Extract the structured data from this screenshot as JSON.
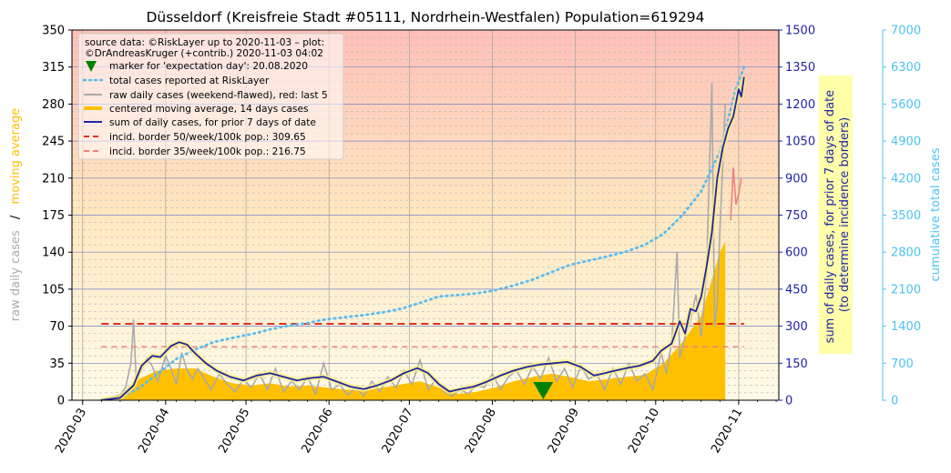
{
  "chart_data": {
    "type": "line",
    "title": "Düsseldorf (Kreisfreie Stadt #05111, Nordrhein-Westfalen) Population=619294",
    "ylabel_left_parts": [
      "raw daily cases",
      "/",
      "moving average"
    ],
    "ylabel_right": [
      "sum of daily cases, for prior 7 days of date",
      "(to determine incidence borders)"
    ],
    "ylabel_far_right": "cumulative total cases",
    "x_tick_labels": [
      "2020-03",
      "2020-04",
      "2020-05",
      "2020-06",
      "2020-07",
      "2020-08",
      "2020-09",
      "2020-10",
      "2020-11"
    ],
    "x_tick_dates": [
      "2020-03-01",
      "2020-04-01",
      "2020-05-01",
      "2020-06-01",
      "2020-07-01",
      "2020-08-01",
      "2020-09-01",
      "2020-10-01",
      "2020-11-01"
    ],
    "xlim": [
      "2020-02-26",
      "2020-11-16"
    ],
    "ylim_left": [
      0,
      350
    ],
    "left_ticks": [
      0,
      35,
      70,
      105,
      140,
      175,
      210,
      245,
      280,
      315,
      350
    ],
    "ylim_right": [
      0,
      1500
    ],
    "right_ticks": [
      0,
      150,
      300,
      450,
      600,
      750,
      900,
      1050,
      1200,
      1350,
      1500
    ],
    "ylim_far_right": [
      0,
      7000
    ],
    "far_right_ticks": [
      0,
      700,
      1400,
      2100,
      2800,
      3500,
      4200,
      4900,
      5600,
      6300,
      7000
    ],
    "grid": true,
    "legend_position": "top-left",
    "legend": {
      "source": "source data: ©RiskLayer up to 2020-11-03 – plot:",
      "credit": "©DrAndreasKruger (+contrib.) 2020-11-03 04:02",
      "entries": [
        "marker for 'expectation day': 20.08.2020",
        "total cases reported at RiskLayer",
        "raw daily cases (weekend-flawed), red: last 5",
        "centered moving average, 14 days cases",
        "sum of daily cases, for prior 7 days of date",
        "incid. border 50/week/100k pop.: 309.65",
        "incid. border 35/week/100k pop.: 216.75"
      ]
    },
    "colors": {
      "raw": "#aaaaaa",
      "raw_last5": "#f08080",
      "moving_avg": "#ffc000",
      "sum7": "#1f24a8",
      "total": "#5bbcf0",
      "border50": "#e03020",
      "border35": "#f08080",
      "marker": "#008000",
      "right_axis": "#1f24a8",
      "far_right_axis": "#4cc3f0",
      "moving_avg_label": "#ffc000",
      "raw_label": "#aaaaaa"
    },
    "expectation_day": "2020-08-20",
    "border50": 309.65,
    "border35": 216.75,
    "series": [
      {
        "name": "raw daily cases (weekend-flawed), red: last 5",
        "axis": "left",
        "points": [
          [
            "2020-03-08",
            1
          ],
          [
            "2020-03-12",
            3
          ],
          [
            "2020-03-15",
            5
          ],
          [
            "2020-03-17",
            12
          ],
          [
            "2020-03-19",
            35
          ],
          [
            "2020-03-20",
            76
          ],
          [
            "2020-03-21",
            20
          ],
          [
            "2020-03-23",
            28
          ],
          [
            "2020-03-25",
            40
          ],
          [
            "2020-03-27",
            32
          ],
          [
            "2020-03-29",
            18
          ],
          [
            "2020-04-01",
            42
          ],
          [
            "2020-04-03",
            30
          ],
          [
            "2020-04-05",
            15
          ],
          [
            "2020-04-07",
            45
          ],
          [
            "2020-04-09",
            28
          ],
          [
            "2020-04-11",
            20
          ],
          [
            "2020-04-13",
            30
          ],
          [
            "2020-04-15",
            22
          ],
          [
            "2020-04-18",
            10
          ],
          [
            "2020-04-21",
            25
          ],
          [
            "2020-04-24",
            15
          ],
          [
            "2020-04-27",
            8
          ],
          [
            "2020-04-30",
            20
          ],
          [
            "2020-05-03",
            12
          ],
          [
            "2020-05-06",
            25
          ],
          [
            "2020-05-09",
            10
          ],
          [
            "2020-05-12",
            30
          ],
          [
            "2020-05-15",
            8
          ],
          [
            "2020-05-18",
            18
          ],
          [
            "2020-05-21",
            10
          ],
          [
            "2020-05-24",
            22
          ],
          [
            "2020-05-27",
            6
          ],
          [
            "2020-05-30",
            35
          ],
          [
            "2020-06-02",
            10
          ],
          [
            "2020-06-05",
            15
          ],
          [
            "2020-06-08",
            5
          ],
          [
            "2020-06-11",
            12
          ],
          [
            "2020-06-14",
            4
          ],
          [
            "2020-06-17",
            18
          ],
          [
            "2020-06-20",
            8
          ],
          [
            "2020-06-23",
            22
          ],
          [
            "2020-06-26",
            12
          ],
          [
            "2020-06-29",
            28
          ],
          [
            "2020-07-02",
            15
          ],
          [
            "2020-07-05",
            38
          ],
          [
            "2020-07-08",
            10
          ],
          [
            "2020-07-11",
            20
          ],
          [
            "2020-07-14",
            8
          ],
          [
            "2020-07-17",
            4
          ],
          [
            "2020-07-20",
            10
          ],
          [
            "2020-07-23",
            6
          ],
          [
            "2020-07-26",
            14
          ],
          [
            "2020-07-29",
            12
          ],
          [
            "2020-08-01",
            25
          ],
          [
            "2020-08-04",
            10
          ],
          [
            "2020-08-07",
            22
          ],
          [
            "2020-08-10",
            28
          ],
          [
            "2020-08-13",
            15
          ],
          [
            "2020-08-16",
            32
          ],
          [
            "2020-08-19",
            20
          ],
          [
            "2020-08-22",
            40
          ],
          [
            "2020-08-25",
            18
          ],
          [
            "2020-08-28",
            30
          ],
          [
            "2020-08-31",
            12
          ],
          [
            "2020-09-03",
            32
          ],
          [
            "2020-09-06",
            20
          ],
          [
            "2020-09-09",
            25
          ],
          [
            "2020-09-12",
            10
          ],
          [
            "2020-09-15",
            30
          ],
          [
            "2020-09-18",
            15
          ],
          [
            "2020-09-21",
            35
          ],
          [
            "2020-09-24",
            18
          ],
          [
            "2020-09-27",
            25
          ],
          [
            "2020-09-30",
            10
          ],
          [
            "2020-10-03",
            45
          ],
          [
            "2020-10-05",
            25
          ],
          [
            "2020-10-07",
            55
          ],
          [
            "2020-10-09",
            140
          ],
          [
            "2020-10-10",
            40
          ],
          [
            "2020-10-12",
            60
          ],
          [
            "2020-10-14",
            75
          ],
          [
            "2020-10-16",
            100
          ],
          [
            "2020-10-18",
            60
          ],
          [
            "2020-10-20",
            120
          ],
          [
            "2020-10-22",
            300
          ],
          [
            "2020-10-23",
            70
          ],
          [
            "2020-10-24",
            90
          ],
          [
            "2020-10-25",
            160
          ],
          [
            "2020-10-27",
            280
          ]
        ]
      },
      {
        "name": "raw daily cases, red: last 5",
        "axis": "left",
        "points": [
          [
            "2020-10-29",
            170
          ],
          [
            "2020-10-30",
            220
          ],
          [
            "2020-10-31",
            185
          ],
          [
            "2020-11-01",
            195
          ],
          [
            "2020-11-02",
            210
          ]
        ]
      },
      {
        "name": "centered moving average, 14 days cases",
        "axis": "left",
        "points": [
          [
            "2020-03-08",
            0
          ],
          [
            "2020-03-15",
            5
          ],
          [
            "2020-03-22",
            20
          ],
          [
            "2020-03-29",
            28
          ],
          [
            "2020-04-05",
            30
          ],
          [
            "2020-04-12",
            30
          ],
          [
            "2020-04-19",
            22
          ],
          [
            "2020-04-26",
            16
          ],
          [
            "2020-05-03",
            14
          ],
          [
            "2020-05-10",
            16
          ],
          [
            "2020-05-17",
            13
          ],
          [
            "2020-05-24",
            14
          ],
          [
            "2020-05-31",
            12
          ],
          [
            "2020-06-07",
            10
          ],
          [
            "2020-06-14",
            9
          ],
          [
            "2020-06-21",
            12
          ],
          [
            "2020-06-28",
            15
          ],
          [
            "2020-07-05",
            18
          ],
          [
            "2020-07-12",
            12
          ],
          [
            "2020-07-19",
            6
          ],
          [
            "2020-07-26",
            8
          ],
          [
            "2020-08-02",
            12
          ],
          [
            "2020-08-09",
            18
          ],
          [
            "2020-08-16",
            22
          ],
          [
            "2020-08-23",
            25
          ],
          [
            "2020-08-30",
            22
          ],
          [
            "2020-09-06",
            18
          ],
          [
            "2020-09-13",
            20
          ],
          [
            "2020-09-20",
            22
          ],
          [
            "2020-09-27",
            24
          ],
          [
            "2020-10-04",
            35
          ],
          [
            "2020-10-11",
            55
          ],
          [
            "2020-10-18",
            80
          ],
          [
            "2020-10-25",
            140
          ],
          [
            "2020-10-27",
            150
          ]
        ]
      },
      {
        "name": "sum of daily cases, for prior 7 days of date",
        "axis": "right",
        "points": [
          [
            "2020-03-08",
            0
          ],
          [
            "2020-03-15",
            10
          ],
          [
            "2020-03-20",
            60
          ],
          [
            "2020-03-23",
            140
          ],
          [
            "2020-03-27",
            180
          ],
          [
            "2020-03-30",
            175
          ],
          [
            "2020-04-03",
            220
          ],
          [
            "2020-04-06",
            235
          ],
          [
            "2020-04-09",
            225
          ],
          [
            "2020-04-12",
            190
          ],
          [
            "2020-04-16",
            150
          ],
          [
            "2020-04-20",
            120
          ],
          [
            "2020-04-25",
            95
          ],
          [
            "2020-04-30",
            80
          ],
          [
            "2020-05-05",
            100
          ],
          [
            "2020-05-10",
            110
          ],
          [
            "2020-05-15",
            95
          ],
          [
            "2020-05-20",
            80
          ],
          [
            "2020-05-25",
            90
          ],
          [
            "2020-05-30",
            95
          ],
          [
            "2020-06-04",
            75
          ],
          [
            "2020-06-09",
            55
          ],
          [
            "2020-06-14",
            45
          ],
          [
            "2020-06-19",
            60
          ],
          [
            "2020-06-24",
            80
          ],
          [
            "2020-06-29",
            110
          ],
          [
            "2020-07-04",
            130
          ],
          [
            "2020-07-08",
            110
          ],
          [
            "2020-07-12",
            65
          ],
          [
            "2020-07-16",
            35
          ],
          [
            "2020-07-20",
            45
          ],
          [
            "2020-07-25",
            55
          ],
          [
            "2020-07-30",
            75
          ],
          [
            "2020-08-04",
            100
          ],
          [
            "2020-08-09",
            120
          ],
          [
            "2020-08-14",
            135
          ],
          [
            "2020-08-19",
            145
          ],
          [
            "2020-08-24",
            150
          ],
          [
            "2020-08-29",
            155
          ],
          [
            "2020-09-03",
            135
          ],
          [
            "2020-09-08",
            100
          ],
          [
            "2020-09-12",
            110
          ],
          [
            "2020-09-16",
            120
          ],
          [
            "2020-09-20",
            130
          ],
          [
            "2020-09-25",
            140
          ],
          [
            "2020-09-30",
            160
          ],
          [
            "2020-10-03",
            200
          ],
          [
            "2020-10-07",
            230
          ],
          [
            "2020-10-10",
            320
          ],
          [
            "2020-10-12",
            270
          ],
          [
            "2020-10-14",
            370
          ],
          [
            "2020-10-16",
            360
          ],
          [
            "2020-10-18",
            420
          ],
          [
            "2020-10-20",
            540
          ],
          [
            "2020-10-22",
            680
          ],
          [
            "2020-10-24",
            900
          ],
          [
            "2020-10-26",
            1020
          ],
          [
            "2020-10-28",
            1100
          ],
          [
            "2020-10-30",
            1150
          ],
          [
            "2020-11-01",
            1260
          ],
          [
            "2020-11-02",
            1230
          ],
          [
            "2020-11-03",
            1310
          ]
        ]
      },
      {
        "name": "total cases reported at RiskLayer",
        "axis": "far_right",
        "points": [
          [
            "2020-03-08",
            5
          ],
          [
            "2020-03-15",
            40
          ],
          [
            "2020-03-22",
            230
          ],
          [
            "2020-03-29",
            500
          ],
          [
            "2020-04-05",
            780
          ],
          [
            "2020-04-12",
            960
          ],
          [
            "2020-04-19",
            1100
          ],
          [
            "2020-04-26",
            1180
          ],
          [
            "2020-05-03",
            1250
          ],
          [
            "2020-05-10",
            1340
          ],
          [
            "2020-05-17",
            1410
          ],
          [
            "2020-05-24",
            1460
          ],
          [
            "2020-05-31",
            1530
          ],
          [
            "2020-06-07",
            1570
          ],
          [
            "2020-06-14",
            1610
          ],
          [
            "2020-06-21",
            1660
          ],
          [
            "2020-06-28",
            1730
          ],
          [
            "2020-07-05",
            1840
          ],
          [
            "2020-07-12",
            1960
          ],
          [
            "2020-07-19",
            1990
          ],
          [
            "2020-07-26",
            2020
          ],
          [
            "2020-08-02",
            2080
          ],
          [
            "2020-08-09",
            2170
          ],
          [
            "2020-08-16",
            2280
          ],
          [
            "2020-08-23",
            2420
          ],
          [
            "2020-08-30",
            2560
          ],
          [
            "2020-09-06",
            2640
          ],
          [
            "2020-09-13",
            2720
          ],
          [
            "2020-09-20",
            2810
          ],
          [
            "2020-09-27",
            2940
          ],
          [
            "2020-10-04",
            3150
          ],
          [
            "2020-10-11",
            3500
          ],
          [
            "2020-10-18",
            3950
          ],
          [
            "2020-10-25",
            4700
          ],
          [
            "2020-10-28",
            5300
          ],
          [
            "2020-10-31",
            5900
          ],
          [
            "2020-11-03",
            6300
          ]
        ]
      }
    ]
  }
}
